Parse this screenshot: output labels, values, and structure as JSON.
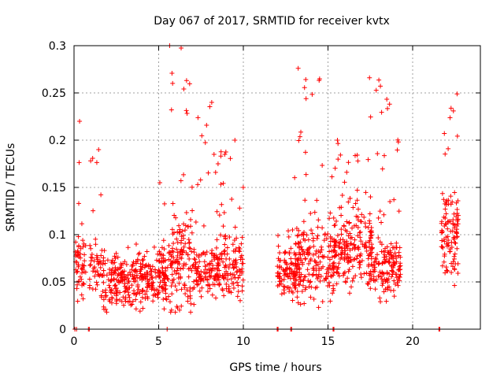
{
  "chart_data": {
    "type": "scatter",
    "title": "Day 067 of 2017, SRMTID for receiver kvtx",
    "xlabel": "GPS time / hours",
    "ylabel": "SRMTID / TECUs",
    "xlim": [
      0,
      24
    ],
    "ylim": [
      0,
      0.3
    ],
    "xticks": [
      0,
      5,
      10,
      15,
      20
    ],
    "xtick_labels": [
      "0",
      "5",
      "10",
      "15",
      "20"
    ],
    "yticks": [
      0,
      0.05,
      0.1,
      0.15,
      0.2,
      0.25,
      0.3
    ],
    "ytick_labels": [
      "0",
      "0.05",
      "0.1",
      "0.15",
      "0.2",
      "0.25",
      "0.3"
    ],
    "grid": true,
    "marker": "+",
    "color": "#ff0000",
    "segments": [
      {
        "start": 0.05,
        "end": 0.7,
        "base": 0.065,
        "spread": 0.025,
        "peak": 0.22,
        "count": 55
      },
      {
        "start": 0.9,
        "end": 1.6,
        "base": 0.068,
        "spread": 0.025,
        "peak": 0.19,
        "count": 45
      },
      {
        "start": 1.6,
        "end": 5.6,
        "base": 0.05,
        "spread": 0.02,
        "peak": 0.09,
        "count": 320
      },
      {
        "start": 4.9,
        "end": 5.4,
        "base": 0.06,
        "spread": 0.03,
        "peak": 0.155,
        "count": 25
      },
      {
        "start": 5.6,
        "end": 7.0,
        "base": 0.075,
        "spread": 0.04,
        "peak": 0.3,
        "count": 140
      },
      {
        "start": 7.0,
        "end": 8.5,
        "base": 0.06,
        "spread": 0.02,
        "peak": 0.24,
        "count": 120
      },
      {
        "start": 8.4,
        "end": 10.0,
        "base": 0.065,
        "spread": 0.025,
        "peak": 0.2,
        "count": 140
      },
      {
        "start": 12.0,
        "end": 13.4,
        "base": 0.06,
        "spread": 0.02,
        "peak": 0.105,
        "count": 110
      },
      {
        "start": 13.0,
        "end": 15.4,
        "base": 0.07,
        "spread": 0.03,
        "peak": 0.276,
        "count": 200
      },
      {
        "start": 15.3,
        "end": 17.6,
        "base": 0.085,
        "spread": 0.03,
        "peak": 0.2,
        "count": 200
      },
      {
        "start": 17.4,
        "end": 19.3,
        "base": 0.065,
        "spread": 0.025,
        "peak": 0.266,
        "count": 170
      },
      {
        "start": 21.7,
        "end": 22.7,
        "base": 0.1,
        "spread": 0.035,
        "peak": 0.249,
        "count": 110
      }
    ],
    "zero_values": [
      {
        "x": 0.05,
        "y": 0
      },
      {
        "x": 0.15,
        "y": 0
      },
      {
        "x": 0.85,
        "y": 0
      },
      {
        "x": 0.9,
        "y": 0
      },
      {
        "x": 5.5,
        "y": 0
      },
      {
        "x": 12.0,
        "y": 0
      },
      {
        "x": 12.05,
        "y": 0
      },
      {
        "x": 12.8,
        "y": 0
      },
      {
        "x": 12.85,
        "y": 0
      },
      {
        "x": 15.3,
        "y": 0
      },
      {
        "x": 15.35,
        "y": 0
      },
      {
        "x": 21.55,
        "y": 0
      },
      {
        "x": 21.6,
        "y": 0
      }
    ]
  }
}
